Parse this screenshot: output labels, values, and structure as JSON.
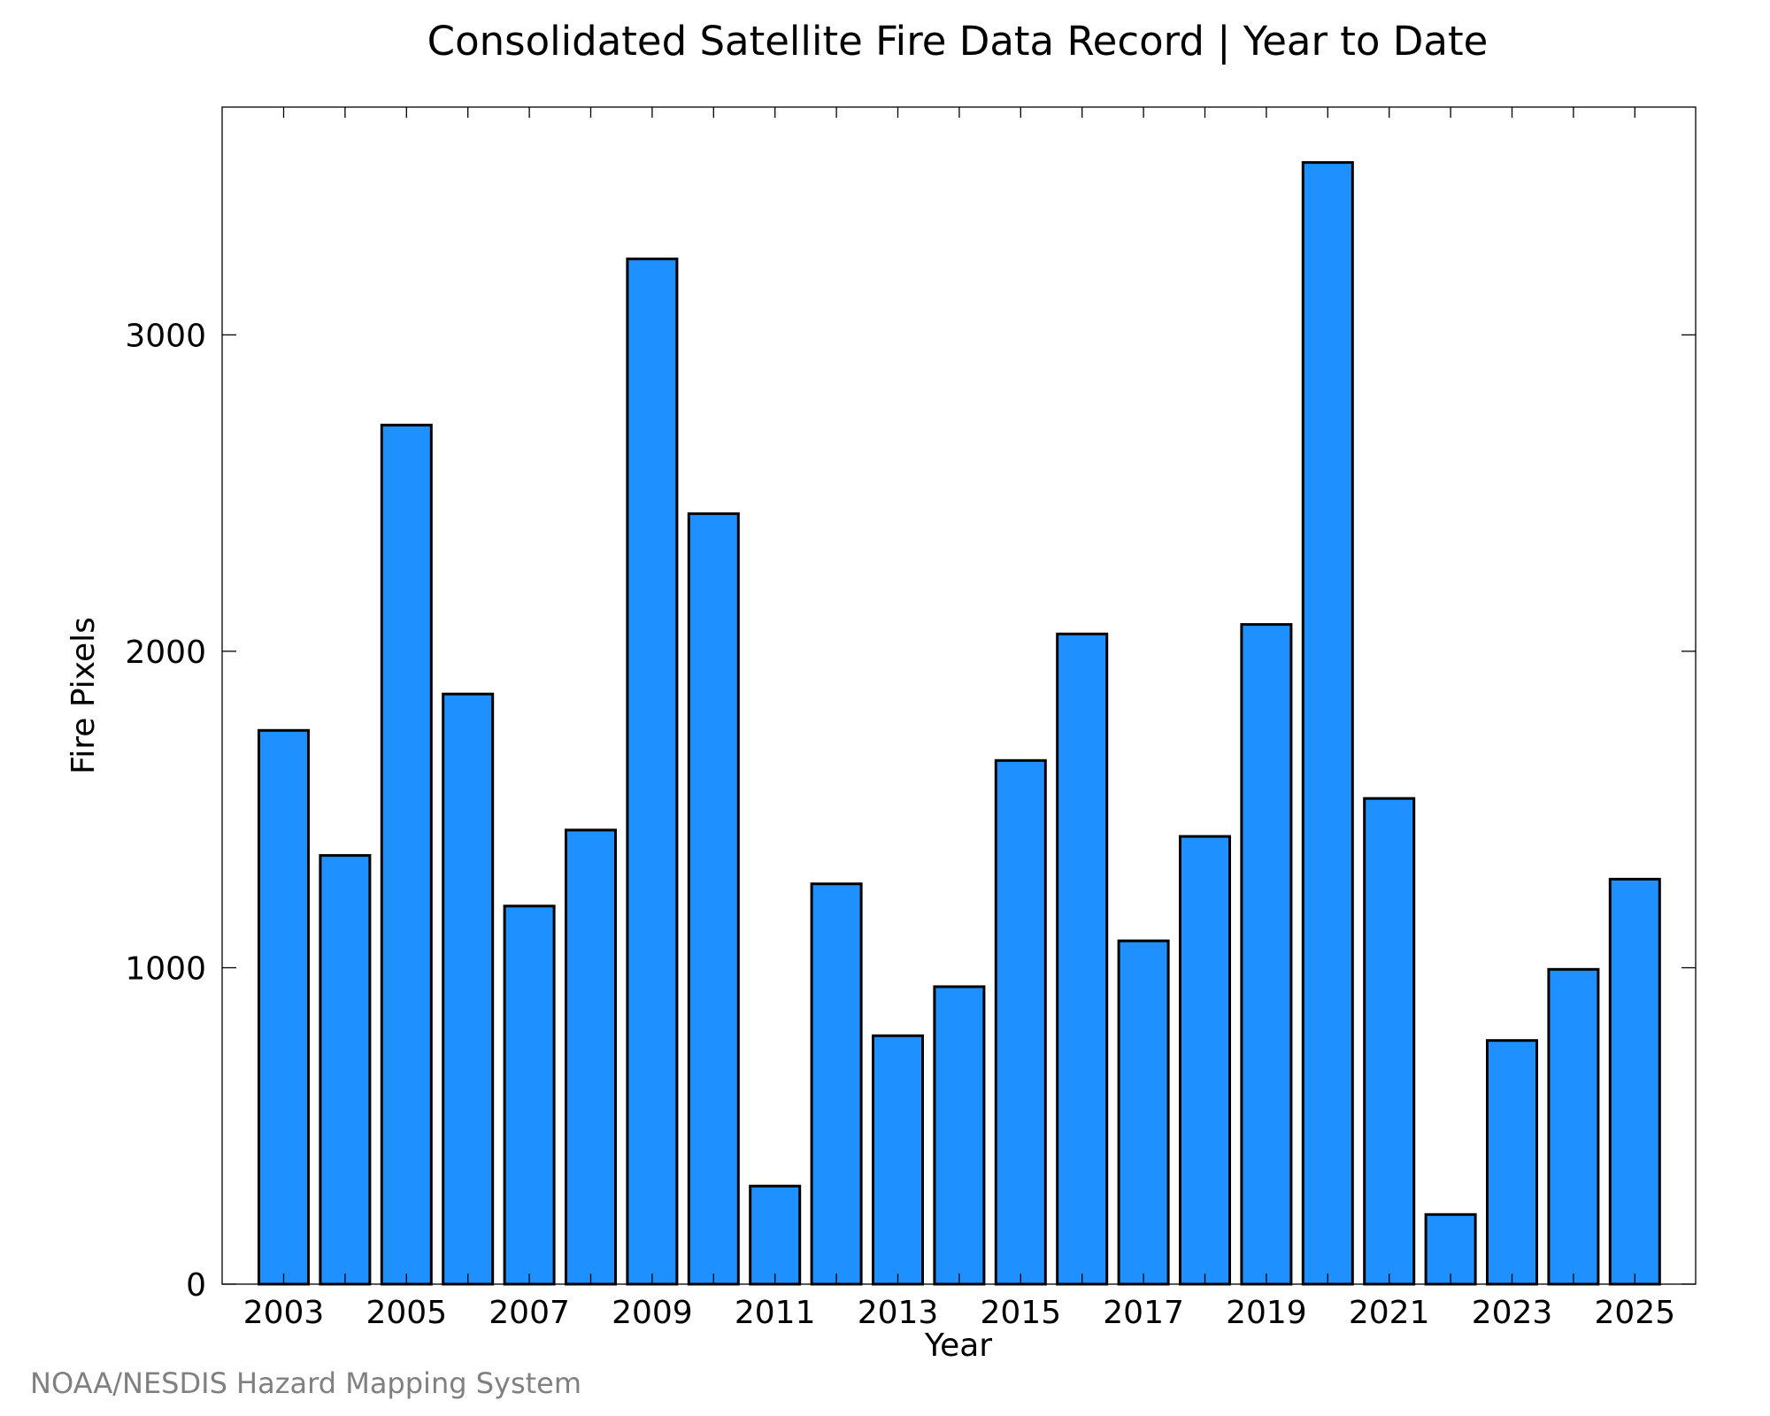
{
  "chart_data": {
    "type": "bar",
    "title": "Consolidated Satellite Fire Data Record | Year to Date",
    "xlabel": "Year",
    "ylabel": "Fire Pixels",
    "categories": [
      "2003",
      "2004",
      "2005",
      "2006",
      "2007",
      "2008",
      "2009",
      "2010",
      "2011",
      "2012",
      "2013",
      "2014",
      "2015",
      "2016",
      "2017",
      "2018",
      "2019",
      "2020",
      "2021",
      "2022",
      "2023",
      "2024",
      "2025"
    ],
    "values": [
      1750,
      1355,
      2715,
      1865,
      1195,
      1435,
      3240,
      2435,
      310,
      1265,
      785,
      940,
      1655,
      2055,
      1085,
      1415,
      2085,
      3545,
      1535,
      220,
      770,
      995,
      1280
    ],
    "x_tick_labels": [
      "2003",
      "2005",
      "2007",
      "2009",
      "2011",
      "2013",
      "2015",
      "2017",
      "2019",
      "2021",
      "2023",
      "2025"
    ],
    "y_tick_labels": [
      "0",
      "1000",
      "2000",
      "3000"
    ],
    "ylim": [
      0,
      3720
    ],
    "grid": false,
    "legend": "none",
    "bar_color": "#1e90ff",
    "bar_edge_color": "#000000",
    "credit": "NOAA/NESDIS Hazard Mapping System"
  }
}
